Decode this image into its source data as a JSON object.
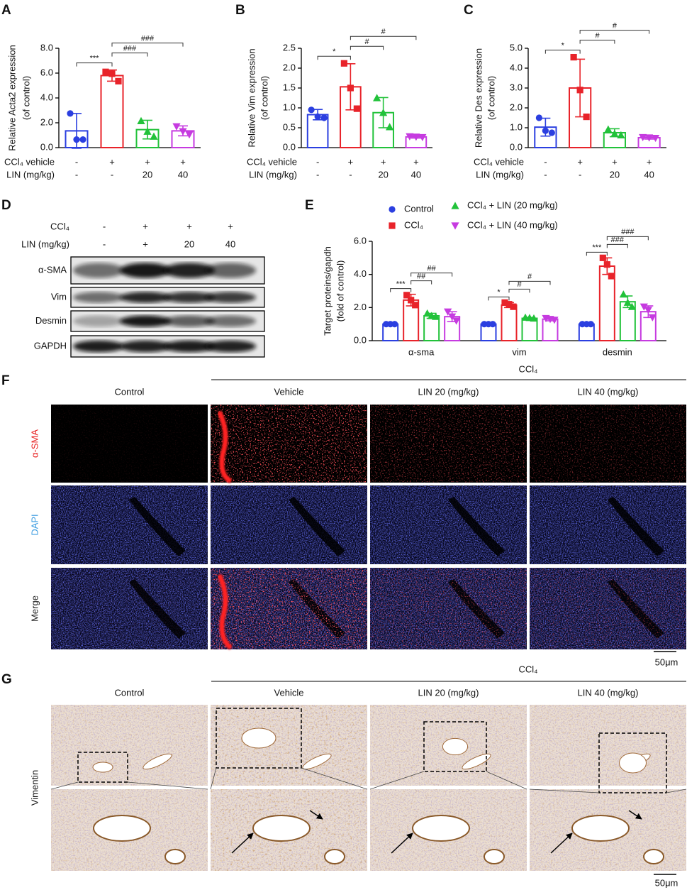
{
  "chart_data": [
    {
      "type": "bar",
      "panel": "A",
      "ylabel": [
        "Relative Acta2 expression",
        "(of control)"
      ],
      "ylim": [
        0,
        8
      ],
      "yticks": [
        {
          "value": 0,
          "label": "0.0"
        },
        {
          "value": 2,
          "label": "2.0"
        },
        {
          "value": 4,
          "label": "4.0"
        },
        {
          "value": 6,
          "label": "6.0"
        },
        {
          "value": 8,
          "label": "8.0"
        }
      ],
      "values": [
        1.35,
        5.8,
        1.45,
        1.35
      ],
      "errors": [
        1.4,
        0.45,
        0.75,
        0.4
      ],
      "points": [
        [
          2.75,
          0.65,
          0.65
        ],
        [
          6.1,
          5.95,
          5.35
        ],
        [
          2.15,
          1.3,
          0.9
        ],
        [
          1.7,
          1.3,
          1.05
        ]
      ],
      "colors": [
        "#2b3fe0",
        "#e8232a",
        "#22c23a",
        "#c63be0"
      ],
      "markers": [
        "circle",
        "square",
        "triangle-up",
        "triangle-down"
      ],
      "x_table": {
        "rows": [
          {
            "label": "CCl₄ vehicle",
            "cells": [
              "-",
              "+",
              "+",
              "+"
            ]
          },
          {
            "label": "LIN (mg/kg)",
            "cells": [
              "-",
              "-",
              "20",
              "40"
            ]
          }
        ]
      },
      "comparisons": [
        {
          "pair": [
            0,
            1
          ],
          "label": "***"
        },
        {
          "pair": [
            1,
            2
          ],
          "label": "###"
        },
        {
          "pair": [
            1,
            3
          ],
          "label": "###"
        }
      ]
    },
    {
      "type": "bar",
      "panel": "B",
      "ylabel": [
        "Relative Vim expression",
        "(of control)"
      ],
      "ylim": [
        0,
        2.5
      ],
      "yticks": [
        {
          "value": 0,
          "label": "0.0"
        },
        {
          "value": 0.5,
          "label": "0.5"
        },
        {
          "value": 1,
          "label": "1.0"
        },
        {
          "value": 1.5,
          "label": "1.5"
        },
        {
          "value": 2,
          "label": "2.0"
        },
        {
          "value": 2.5,
          "label": "2.5"
        }
      ],
      "values": [
        0.83,
        1.53,
        0.88,
        0.27
      ],
      "errors": [
        0.13,
        0.58,
        0.38,
        0.03
      ],
      "points": [
        [
          0.95,
          0.78,
          0.75
        ],
        [
          2.12,
          1.5,
          0.98
        ],
        [
          1.25,
          0.88,
          0.52
        ],
        [
          0.28,
          0.27,
          0.26
        ]
      ],
      "colors": [
        "#2b3fe0",
        "#e8232a",
        "#22c23a",
        "#c63be0"
      ],
      "markers": [
        "circle",
        "square",
        "triangle-up",
        "triangle-down"
      ],
      "x_table": {
        "rows": [
          {
            "label": "CCl₄ vehicle",
            "cells": [
              "-",
              "+",
              "+",
              "+"
            ]
          },
          {
            "label": "LIN (mg/kg)",
            "cells": [
              "-",
              "-",
              "20",
              "40"
            ]
          }
        ]
      },
      "comparisons": [
        {
          "pair": [
            0,
            1
          ],
          "label": "*"
        },
        {
          "pair": [
            1,
            2
          ],
          "label": "#"
        },
        {
          "pair": [
            1,
            3
          ],
          "label": "#"
        }
      ]
    },
    {
      "type": "bar",
      "panel": "C",
      "ylabel": [
        "Relative Des expression",
        "(of control)"
      ],
      "ylim": [
        0,
        5
      ],
      "yticks": [
        {
          "value": 0,
          "label": "0.0"
        },
        {
          "value": 1,
          "label": "1.0"
        },
        {
          "value": 2,
          "label": "2.0"
        },
        {
          "value": 3,
          "label": "3.0"
        },
        {
          "value": 4,
          "label": "4.0"
        },
        {
          "value": 5,
          "label": "5.0"
        }
      ],
      "values": [
        1.03,
        3.0,
        0.75,
        0.5
      ],
      "errors": [
        0.45,
        1.45,
        0.2,
        0.07
      ],
      "points": [
        [
          1.5,
          0.85,
          0.75
        ],
        [
          4.55,
          2.9,
          1.55
        ],
        [
          0.92,
          0.7,
          0.63
        ],
        [
          0.52,
          0.5,
          0.48
        ]
      ],
      "colors": [
        "#2b3fe0",
        "#e8232a",
        "#22c23a",
        "#c63be0"
      ],
      "markers": [
        "circle",
        "square",
        "triangle-up",
        "triangle-down"
      ],
      "x_table": {
        "rows": [
          {
            "label": "CCl₄ vehicle",
            "cells": [
              "-",
              "+",
              "+",
              "+"
            ]
          },
          {
            "label": "LIN (mg/kg)",
            "cells": [
              "-",
              "-",
              "20",
              "40"
            ]
          }
        ]
      },
      "comparisons": [
        {
          "pair": [
            0,
            1
          ],
          "label": "*"
        },
        {
          "pair": [
            1,
            2
          ],
          "label": "#"
        },
        {
          "pair": [
            1,
            3
          ],
          "label": "#"
        }
      ]
    },
    {
      "type": "grouped",
      "panel": "E",
      "ylabel": [
        "Target proteins/gapdh",
        "(fold of control)"
      ],
      "ylim": [
        0,
        6
      ],
      "yticks": [
        {
          "value": 0,
          "label": "0.0"
        },
        {
          "value": 2,
          "label": "2.0"
        },
        {
          "value": 4,
          "label": "4.0"
        },
        {
          "value": 6,
          "label": "6.0"
        }
      ],
      "categories": [
        "α-sma",
        "vim",
        "desmin"
      ],
      "legend": "top",
      "series": [
        {
          "name": "Control",
          "color": "#2b3fe0",
          "marker": "circle",
          "values": [
            1,
            1,
            1
          ],
          "errors": [
            0,
            0,
            0
          ],
          "points": [
            [
              1,
              1,
              1
            ],
            [
              1,
              1,
              1
            ],
            [
              1,
              1,
              1
            ]
          ]
        },
        {
          "name": "CCl₄",
          "color": "#e8232a",
          "marker": "square",
          "values": [
            2.45,
            2.15,
            4.5
          ],
          "errors": [
            0.35,
            0.15,
            0.5
          ],
          "points": [
            [
              2.75,
              2.45,
              2.15
            ],
            [
              2.3,
              2.2,
              2.05
            ],
            [
              5.0,
              4.6,
              3.9
            ]
          ]
        },
        {
          "name": "CCl₄ + LIN (20 mg/kg)",
          "color": "#22c23a",
          "marker": "triangle-up",
          "values": [
            1.5,
            1.35,
            2.35
          ],
          "errors": [
            0.15,
            0.05,
            0.35
          ],
          "points": [
            [
              1.65,
              1.5,
              1.45
            ],
            [
              1.4,
              1.38,
              1.35
            ],
            [
              2.8,
              2.3,
              2.05
            ]
          ]
        },
        {
          "name": "CCl₄ + LIN (40 mg/kg)",
          "color": "#c63be0",
          "marker": "triangle-down",
          "values": [
            1.45,
            1.3,
            1.75
          ],
          "errors": [
            0.3,
            0.1,
            0.35
          ],
          "points": [
            [
              1.75,
              1.45,
              1.2
            ],
            [
              1.35,
              1.3,
              1.25
            ],
            [
              2.05,
              1.85,
              1.4
            ]
          ]
        }
      ],
      "comparisons": [
        [
          {
            "pair": [
              0,
              1
            ],
            "label": "***"
          },
          {
            "pair": [
              1,
              2
            ],
            "label": "##"
          },
          {
            "pair": [
              1,
              3
            ],
            "label": "##"
          }
        ],
        [
          {
            "pair": [
              0,
              1
            ],
            "label": "*"
          },
          {
            "pair": [
              1,
              2
            ],
            "label": "#"
          },
          {
            "pair": [
              1,
              3
            ],
            "label": "#"
          }
        ],
        [
          {
            "pair": [
              0,
              1
            ],
            "label": "***"
          },
          {
            "pair": [
              1,
              2
            ],
            "label": "###"
          },
          {
            "pair": [
              1,
              3
            ],
            "label": "###"
          }
        ]
      ]
    }
  ],
  "panel_d": {
    "label": "D",
    "header_rows": [
      {
        "label": "CCl₄",
        "cells": [
          "-",
          "+",
          "+",
          "+"
        ]
      },
      {
        "label": "LIN  (mg/kg)",
        "cells": [
          "-",
          "+",
          "20",
          "40"
        ]
      }
    ],
    "blots": [
      "α-SMA",
      "Vim",
      "Desmin",
      "GAPDH"
    ]
  },
  "panel_f": {
    "label": "F",
    "group": "CCl₄",
    "columns": [
      "Control",
      "Vehicle",
      "LIN 20 (mg/kg)",
      "LIN 40 (mg/kg)"
    ],
    "rows": [
      "α-SMA",
      "DAPI",
      "Merge"
    ],
    "scale": "50μm"
  },
  "panel_g": {
    "label": "G",
    "group": "CCl₄",
    "columns": [
      "Control",
      "Vehicle",
      "LIN 20 (mg/kg)",
      "LIN 40 (mg/kg)"
    ],
    "row": "Vimentin",
    "scale": "50μm"
  }
}
